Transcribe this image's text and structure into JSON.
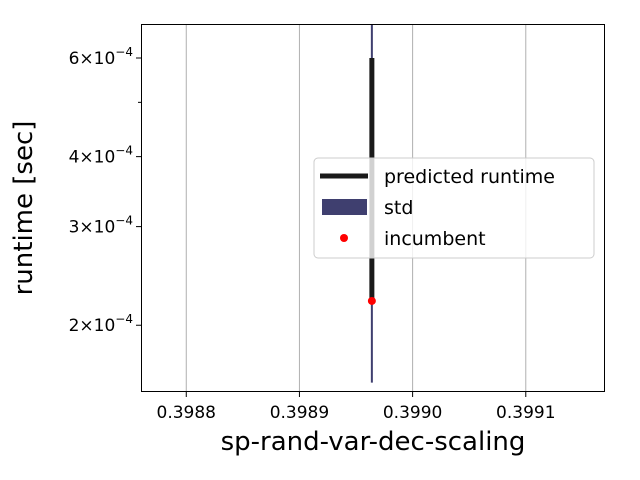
{
  "chart_data": {
    "type": "line",
    "title": "",
    "xlabel": "sp-rand-var-dec-scaling",
    "ylabel": "runtime [sec]",
    "xlim": [
      0.39876,
      0.39917
    ],
    "ylim": [
      0.000152,
      0.00069
    ],
    "yscale": "log",
    "grid": "x-only",
    "x_ticks": [
      {
        "value": 0.3988,
        "label": "0.3988"
      },
      {
        "value": 0.3989,
        "label": "0.3989"
      },
      {
        "value": 0.399,
        "label": "0.3990"
      },
      {
        "value": 0.3991,
        "label": "0.3991"
      }
    ],
    "y_ticks": [
      {
        "value": 0.0002,
        "mantissa": "2",
        "exp": "−4"
      },
      {
        "value": 0.0003,
        "mantissa": "3",
        "exp": "−4"
      },
      {
        "value": 0.0004,
        "mantissa": "4",
        "exp": "−4"
      },
      {
        "value": 0.0006,
        "mantissa": "6",
        "exp": "−4"
      }
    ],
    "y_minor_ticks": [
      0.0005
    ],
    "series": [
      {
        "name": "predicted runtime",
        "kind": "line",
        "color": "#1a1a1a",
        "x": [
          0.398964,
          0.398964
        ],
        "y": [
          0.000221,
          0.0006
        ]
      },
      {
        "name": "std",
        "kind": "band",
        "color": "#3f3f6f",
        "x": [
          0.398964,
          0.398964
        ],
        "y": [
          0.000158,
          0.00069
        ]
      },
      {
        "name": "incumbent",
        "kind": "point",
        "color": "#ff0000",
        "x": [
          0.398964
        ],
        "y": [
          0.000221
        ]
      }
    ],
    "legend": {
      "placement": "right",
      "entries": [
        "predicted runtime",
        "std",
        "incumbent"
      ]
    }
  }
}
